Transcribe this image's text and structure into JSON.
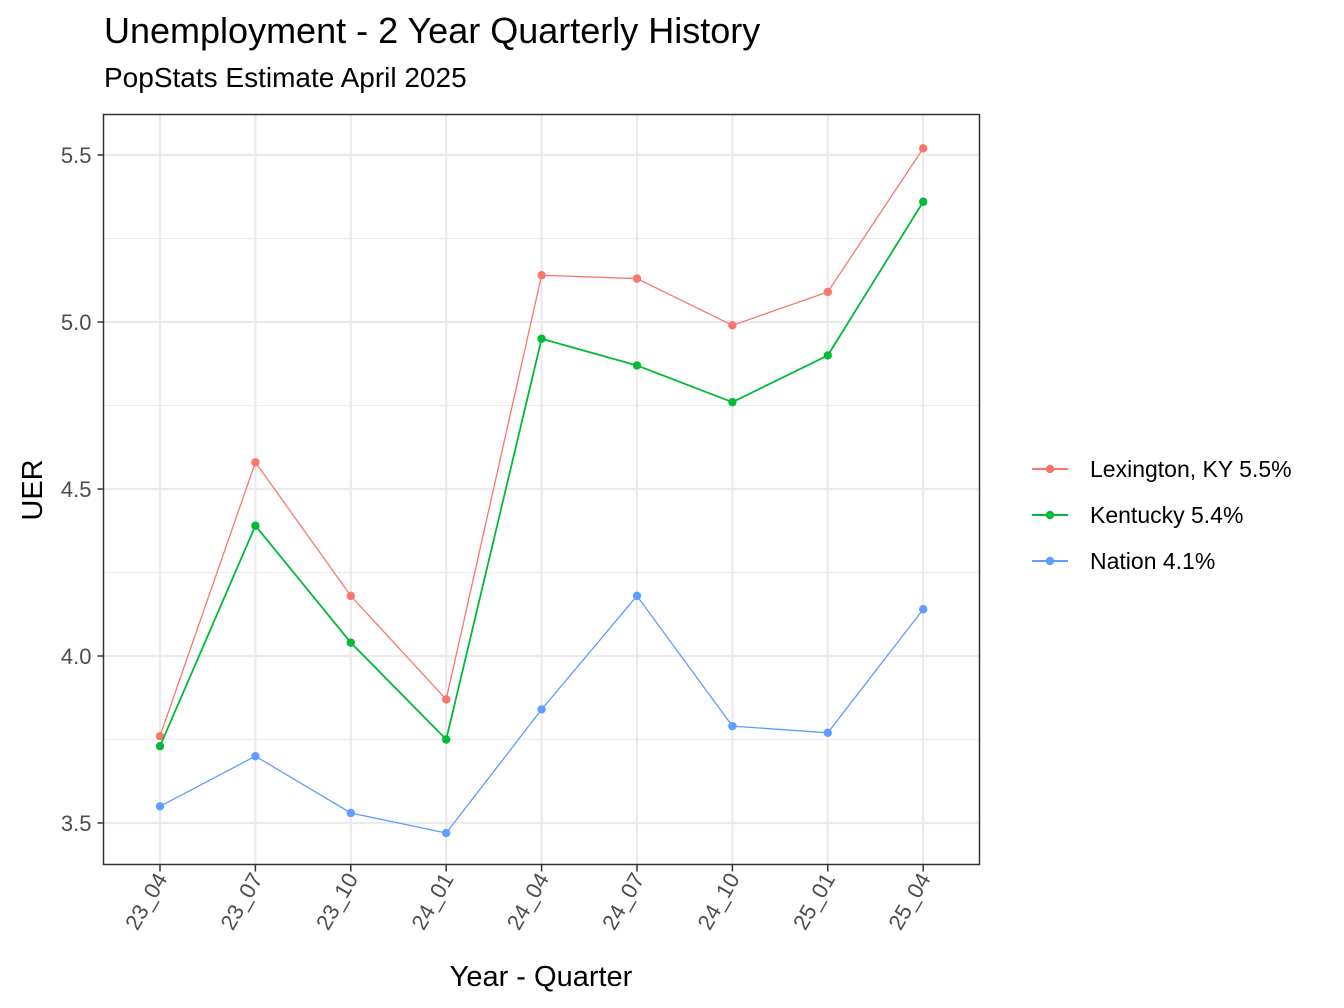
{
  "chart": {
    "title": "Unemployment - 2 Year Quarterly History",
    "subtitle": "PopStats Estimate April 2025",
    "xlabel": "Year - Quarter",
    "ylabel": "UER"
  },
  "chart_data": {
    "type": "line",
    "title": "Unemployment - 2 Year Quarterly History",
    "subtitle": "PopStats Estimate April 2025",
    "xlabel": "Year - Quarter",
    "ylabel": "UER",
    "categories": [
      "23_04",
      "23_07",
      "23_10",
      "24_01",
      "24_04",
      "24_07",
      "24_10",
      "25_01",
      "25_04"
    ],
    "yticks": [
      3.5,
      4.0,
      4.5,
      5.0,
      5.5
    ],
    "ytick_labels": [
      "3.5",
      "4.0",
      "4.5",
      "5.0",
      "5.5"
    ],
    "ylim": [
      3.38,
      5.62
    ],
    "grid": true,
    "legend_position": "right",
    "series": [
      {
        "name": "Lexington, KY 5.5%",
        "color": "#F8766D",
        "values": [
          3.76,
          4.58,
          4.18,
          3.87,
          5.14,
          5.13,
          4.99,
          5.09,
          5.52
        ]
      },
      {
        "name": "Kentucky 5.4%",
        "color": "#00BA38",
        "values": [
          3.73,
          4.39,
          4.04,
          3.75,
          4.95,
          4.87,
          4.76,
          4.9,
          5.36
        ]
      },
      {
        "name": "Nation 4.1%",
        "color": "#619CFF",
        "values": [
          3.55,
          3.7,
          3.53,
          3.47,
          3.84,
          4.18,
          3.79,
          3.77,
          4.14
        ]
      }
    ]
  }
}
